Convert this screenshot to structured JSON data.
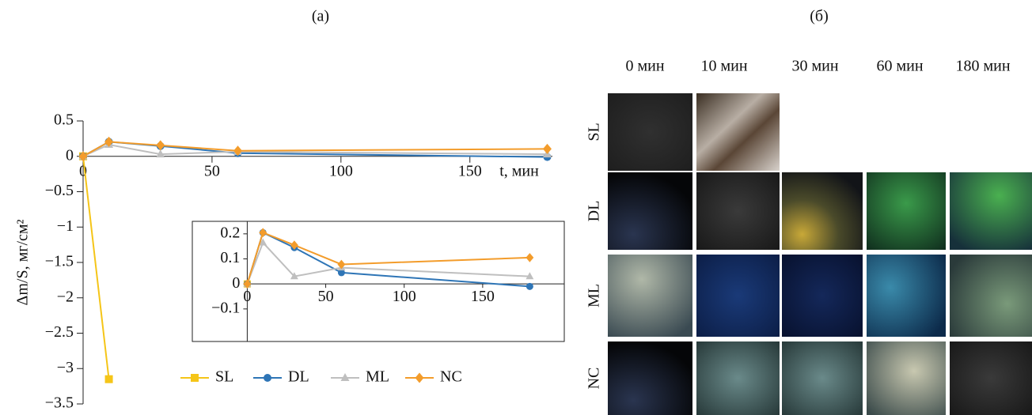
{
  "panels": {
    "a_label": "(а)",
    "b_label": "(б)",
    "photo_columns": [
      "0 мин",
      "10 мин",
      "30 мин",
      "60 мин",
      "180 мин"
    ],
    "photo_rows": [
      "SL",
      "DL",
      "ML",
      "NC"
    ]
  },
  "chart_data": [
    {
      "type": "line",
      "x_label": "t, мин",
      "y_label": "Δm/S, мг/см²",
      "x": [
        0,
        10,
        30,
        60,
        180
      ],
      "series": [
        {
          "name": "SL",
          "color": "#f5c518",
          "marker": "square",
          "values": [
            0,
            -3.15,
            null,
            null,
            null
          ]
        },
        {
          "name": "DL",
          "color": "#2e75b6",
          "marker": "circle",
          "values": [
            0,
            0.205,
            0.145,
            0.045,
            -0.01
          ]
        },
        {
          "name": "ML",
          "color": "#bfbfbf",
          "marker": "triangle",
          "values": [
            0,
            0.165,
            0.03,
            0.065,
            0.03
          ]
        },
        {
          "name": "NC",
          "color": "#f39c2b",
          "marker": "diamond",
          "values": [
            0,
            0.205,
            0.155,
            0.078,
            0.105
          ]
        }
      ],
      "xlim": [
        0,
        182
      ],
      "xticks": [
        0,
        50,
        100,
        150
      ],
      "ylim": [
        -3.5,
        0.5
      ],
      "yticks": [
        0.5,
        0,
        {
          "value": -0.5,
          "label": "−0.5"
        },
        {
          "value": -1,
          "label": "−1"
        },
        {
          "value": -1.5,
          "label": "−1.5"
        },
        {
          "value": -2,
          "label": "−2"
        },
        {
          "value": -2.5,
          "label": "−2.5"
        },
        {
          "value": -3,
          "label": "−3"
        },
        {
          "value": -3.5,
          "label": "−3.5"
        }
      ],
      "legend": "bottom"
    },
    {
      "type": "line",
      "x": [
        0,
        10,
        30,
        60,
        180
      ],
      "series": [
        {
          "color": "#f5c518",
          "marker": "square",
          "values": [
            0,
            null,
            null,
            null,
            null
          ]
        },
        {
          "color": "#2e75b6",
          "marker": "circle",
          "values": [
            0,
            0.205,
            0.145,
            0.045,
            -0.01
          ]
        },
        {
          "color": "#bfbfbf",
          "marker": "triangle",
          "values": [
            0,
            0.165,
            0.03,
            0.065,
            0.03
          ]
        },
        {
          "color": "#f39c2b",
          "marker": "diamond",
          "values": [
            0,
            0.205,
            0.155,
            0.078,
            0.105
          ]
        }
      ],
      "xlim": [
        -35,
        202
      ],
      "xticks": [
        0,
        50,
        100,
        150
      ],
      "ylim": [
        -0.23,
        0.25
      ],
      "yticks": [
        0.2,
        0.1,
        0,
        {
          "value": -0.1,
          "label": "−0.1"
        }
      ]
    }
  ]
}
